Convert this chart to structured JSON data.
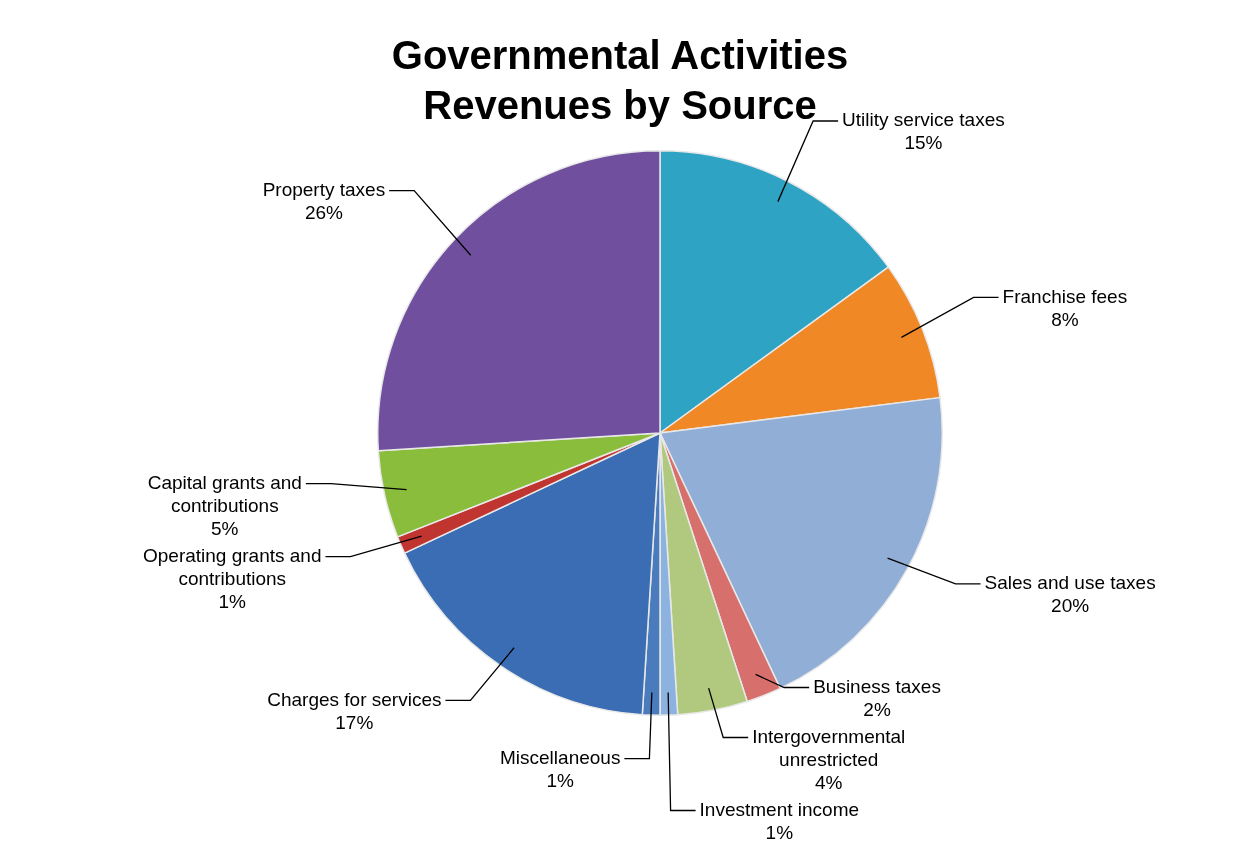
{
  "chart_data": {
    "type": "pie",
    "title": "Governmental Activities Revenues by Source",
    "categories": [
      "Utility service taxes",
      "Franchise fees",
      "Sales and use taxes",
      "Business taxes",
      "Intergovernmental unrestricted",
      "Investment income",
      "Miscellaneous",
      "Charges for services",
      "Operating grants and contributions",
      "Capital grants and contributions",
      "Property taxes"
    ],
    "values": [
      15,
      8,
      20,
      2,
      4,
      1,
      1,
      17,
      1,
      5,
      26
    ],
    "colors": [
      "#2ea3c4",
      "#f08826",
      "#91aed6",
      "#d7706c",
      "#b0c97e",
      "#8cb2df",
      "#4a7cbd",
      "#3a6db4",
      "#c0352f",
      "#8abd3c",
      "#70509e"
    ],
    "value_labels": [
      "15%",
      "8%",
      "20%",
      "2%",
      "4%",
      "1%",
      "1%",
      "17%",
      "1%",
      "5%",
      "26%"
    ],
    "legend": false
  }
}
